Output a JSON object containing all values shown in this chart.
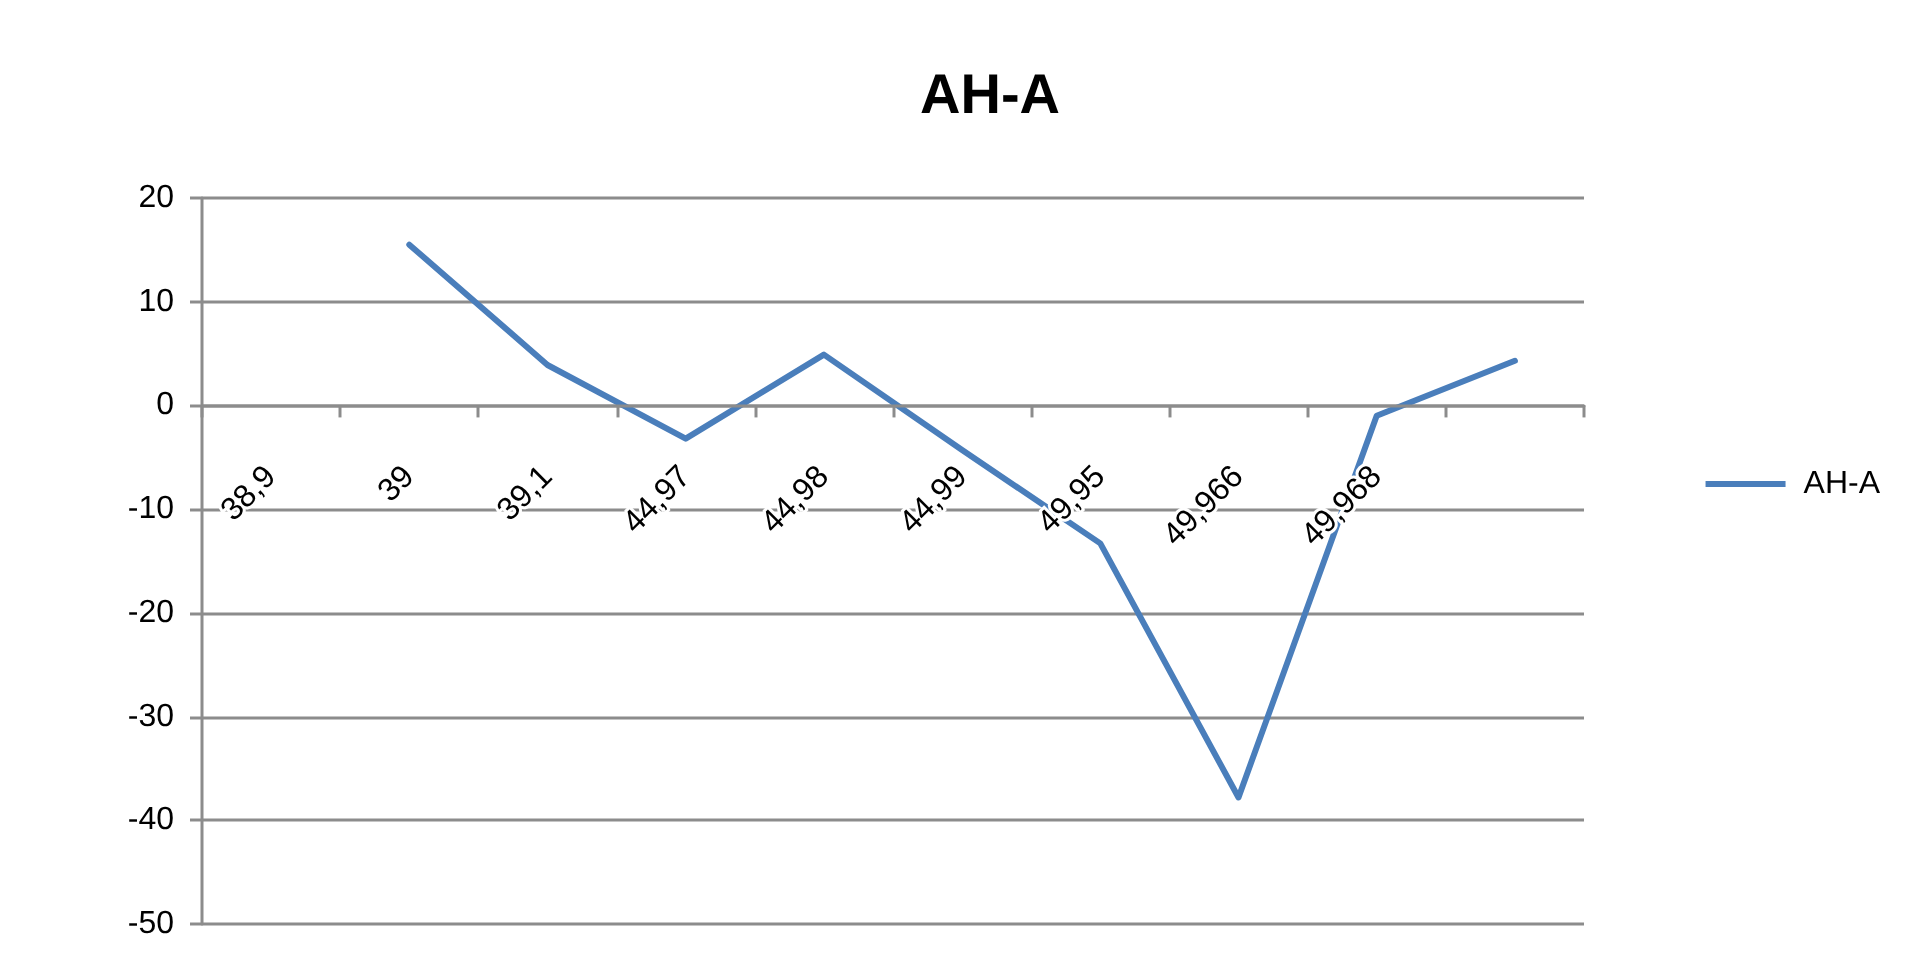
{
  "chart_data": {
    "type": "line",
    "title": "AH-A",
    "categories": [
      "38,9",
      "39",
      "39,1",
      "44,97",
      "44,98",
      "44,99",
      "49,95",
      "49,966",
      "49,968",
      null
    ],
    "series": [
      {
        "name": "AH-A",
        "color": "#4a7ebb",
        "values": [
          null,
          15.5,
          3.9,
          -3.2,
          4.9,
          -4.3,
          -13.3,
          -37.8,
          -1.0,
          4.3
        ]
      }
    ],
    "ylim": [
      -50,
      20
    ],
    "yticks": [
      -50,
      -40,
      -30,
      -20,
      -10,
      0,
      10,
      20
    ],
    "grid": "y",
    "legend": "right",
    "marker": "none",
    "line_style": "solid"
  }
}
